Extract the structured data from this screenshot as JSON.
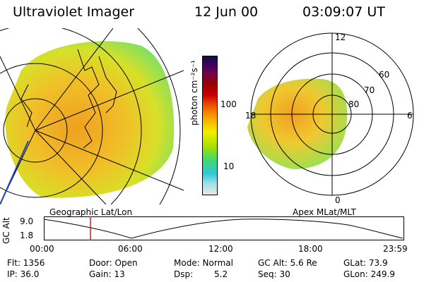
{
  "header": {
    "instrument": "Ultraviolet Imager",
    "date": "12 Jun 00",
    "time": "03:09:07 UT"
  },
  "colorbar": {
    "unit_label": "photon cm⁻²s⁻¹",
    "ticks": [
      "100",
      "10"
    ],
    "colors": [
      "#e8e8e8",
      "#a0e0e8",
      "#30c8d8",
      "#40d870",
      "#a8e000",
      "#f0f000",
      "#f8c000",
      "#f89000",
      "#e85000",
      "#c80000",
      "#980000",
      "#700050",
      "#400060",
      "#101040"
    ]
  },
  "left_panel": {
    "caption": "Geographic Lat/Lon"
  },
  "right_panel": {
    "caption": "Apex MLat/MLT",
    "mlt_labels": {
      "top": "12",
      "bottom": "0",
      "left": "18",
      "right": "6"
    },
    "lat_labels": [
      "60",
      "70",
      "80"
    ]
  },
  "altitude_plot": {
    "ylabel": "GC Alt",
    "yticks": [
      "9.0",
      "1.8"
    ],
    "xticks": [
      "00:00",
      "06:00",
      "12:00",
      "18:00",
      "23:59"
    ],
    "marker_color": "#d02020"
  },
  "info": {
    "flt": "Flt: 1356",
    "ip": "IP: 36.0",
    "door": "Door: Open",
    "gain": "Gain: 13",
    "mode": "Mode: Normal",
    "dsp_label": "Dsp:",
    "dsp_value": "5.2",
    "gc_alt": "GC Alt: 5.6 Re",
    "seq": "Seq: 30",
    "glat": "GLat: 73.9",
    "glon": "GLon: 249.9"
  }
}
